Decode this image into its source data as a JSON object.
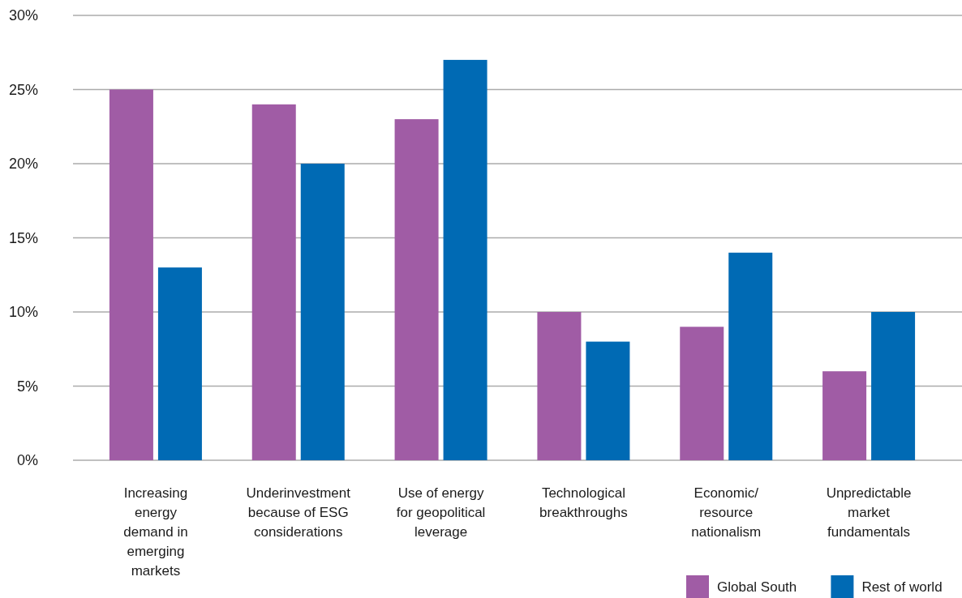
{
  "chart_data": {
    "type": "bar",
    "categories": [
      "Increasing\nenergy\ndemand in\nemerging\nmarkets",
      "Underinvestment\nbecause of ESG\nconsiderations",
      "Use of energy\nfor geopolitical\nleverage",
      "Technological\nbreakthroughs",
      "Economic/\nresource\nnationalism",
      "Unpredictable\nmarket\nfundamentals"
    ],
    "series": [
      {
        "name": "Global South",
        "color": "#a05ca5",
        "values": [
          25,
          24,
          23,
          10,
          9,
          6
        ]
      },
      {
        "name": "Rest of world",
        "color": "#006ab4",
        "values": [
          13,
          20,
          27,
          8,
          14,
          10
        ]
      }
    ],
    "ylim": [
      0,
      30
    ],
    "yticks": [
      {
        "value": 0,
        "label": "0%"
      },
      {
        "value": 5,
        "label": "5%"
      },
      {
        "value": 10,
        "label": "10%"
      },
      {
        "value": 15,
        "label": "15%"
      },
      {
        "value": 20,
        "label": "20%"
      },
      {
        "value": 25,
        "label": "25%"
      },
      {
        "value": 30,
        "label": "30%"
      }
    ],
    "grid": true,
    "legend": "bottom right"
  }
}
